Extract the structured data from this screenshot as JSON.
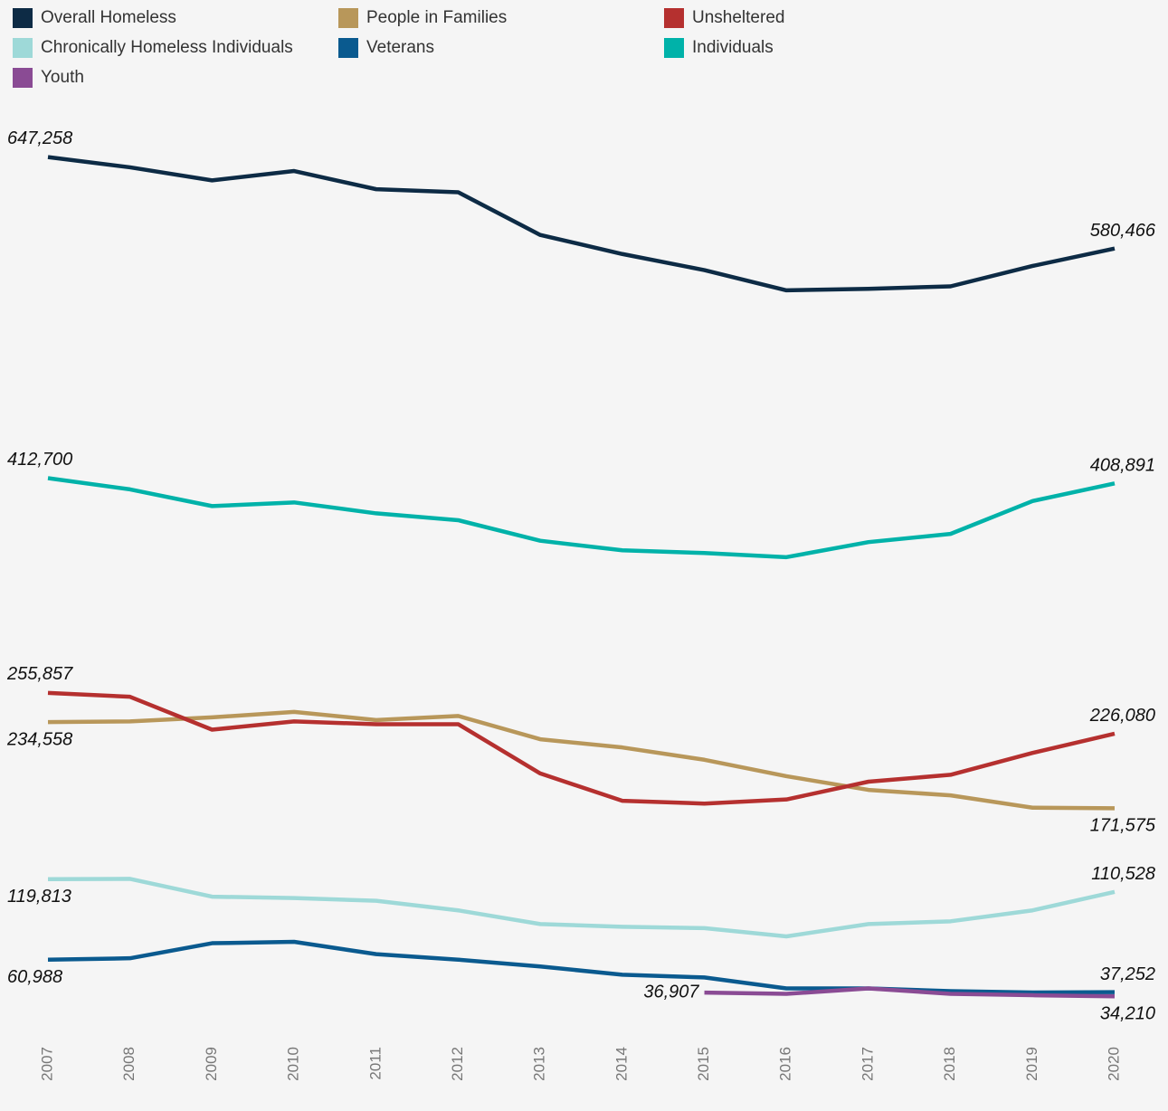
{
  "chart_data": {
    "type": "line",
    "x": [
      2007,
      2008,
      2009,
      2010,
      2011,
      2012,
      2013,
      2014,
      2015,
      2016,
      2017,
      2018,
      2019,
      2020
    ],
    "xlim": [
      2007,
      2020
    ],
    "ylim": [
      0,
      762000
    ],
    "series": [
      {
        "name": "Overall Homeless",
        "color": "#0d2b45",
        "values": [
          647258,
          639784,
          630227,
          637077,
          623788,
          621553,
          590364,
          576450,
          564708,
          549928,
          550996,
          552830,
          567715,
          580466
        ],
        "value_labels": [
          "647,258",
          null,
          null,
          null,
          null,
          null,
          null,
          null,
          null,
          null,
          null,
          null,
          null,
          "580,466"
        ]
      },
      {
        "name": "People in Families",
        "color": "#b8975a",
        "values": [
          234558,
          235000,
          238000,
          242000,
          236000,
          239000,
          222000,
          216000,
          207000,
          195000,
          185000,
          181000,
          172000,
          171575
        ],
        "value_labels": [
          "234,558",
          null,
          null,
          null,
          null,
          null,
          null,
          null,
          null,
          null,
          null,
          null,
          null,
          "171,575"
        ]
      },
      {
        "name": "Unsheltered",
        "color": "#b5302f",
        "values": [
          255857,
          253000,
          229000,
          235000,
          233000,
          233000,
          197000,
          177000,
          175000,
          178000,
          191000,
          196000,
          212000,
          226080
        ],
        "value_labels": [
          "255,857",
          null,
          null,
          null,
          null,
          null,
          null,
          null,
          null,
          null,
          null,
          null,
          null,
          "226,080"
        ]
      },
      {
        "name": "Chronically Homeless Individuals",
        "color": "#9ed9d8",
        "values": [
          119813,
          120000,
          107000,
          106000,
          104000,
          97000,
          87000,
          85000,
          84000,
          78000,
          87000,
          89000,
          97000,
          110528
        ],
        "value_labels": [
          "119,813",
          null,
          null,
          null,
          null,
          null,
          null,
          null,
          null,
          null,
          null,
          null,
          null,
          "110,528"
        ]
      },
      {
        "name": "Veterans",
        "color": "#0a5a8f",
        "values": [
          60988,
          62000,
          73000,
          74000,
          65000,
          61000,
          56000,
          50000,
          48000,
          40000,
          40000,
          38000,
          37000,
          37252
        ],
        "value_labels": [
          "60,988",
          null,
          null,
          null,
          null,
          null,
          null,
          null,
          null,
          null,
          null,
          null,
          null,
          "37,252"
        ]
      },
      {
        "name": "Individuals",
        "color": "#00b2a9",
        "values": [
          412700,
          404525,
          392316,
          395000,
          387000,
          382000,
          367000,
          360000,
          358000,
          355000,
          366000,
          372000,
          396000,
          408891
        ],
        "value_labels": [
          "412,700",
          null,
          null,
          null,
          null,
          null,
          null,
          null,
          null,
          null,
          null,
          null,
          null,
          "408,891"
        ]
      },
      {
        "name": "Youth",
        "color": "#8a4b94",
        "values": [
          null,
          null,
          null,
          null,
          null,
          null,
          null,
          null,
          36907,
          36000,
          40000,
          36000,
          35000,
          34210
        ],
        "value_labels": [
          null,
          null,
          null,
          null,
          null,
          null,
          null,
          null,
          "36,907",
          null,
          null,
          null,
          null,
          "34,210"
        ]
      }
    ]
  }
}
